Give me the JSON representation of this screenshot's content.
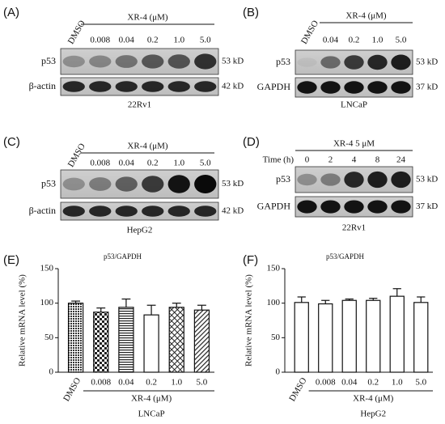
{
  "blots": [
    {
      "label": "(A)",
      "treatment": "XR-4 (μM)",
      "lanes": [
        "DMSO",
        "0.008",
        "0.04",
        "0.2",
        "1.0",
        "5.0"
      ],
      "rows": [
        {
          "name": "p53",
          "size": "53 kD"
        },
        {
          "name": "β-actin",
          "size": "42 kD"
        }
      ],
      "cell_line": "22Rv1"
    },
    {
      "label": "(B)",
      "treatment": "XR-4 (μM)",
      "lanes": [
        "DMSO",
        "0.04",
        "0.2",
        "1.0",
        "5.0"
      ],
      "rows": [
        {
          "name": "p53",
          "size": "53 kD"
        },
        {
          "name": "GAPDH",
          "size": "37 kD"
        }
      ],
      "cell_line": "LNCaP"
    },
    {
      "label": "(C)",
      "treatment": "XR-4 (μM)",
      "lanes": [
        "DMSO",
        "0.008",
        "0.04",
        "0.2",
        "1.0",
        "5.0"
      ],
      "rows": [
        {
          "name": "p53",
          "size": "53 kD"
        },
        {
          "name": "β-actin",
          "size": "42 kD"
        }
      ],
      "cell_line": "HepG2"
    },
    {
      "label": "(D)",
      "treatment": "XR-4 5 μM",
      "lane_title": "Time (h)",
      "lanes": [
        "0",
        "2",
        "4",
        "8",
        "24"
      ],
      "rows": [
        {
          "name": "p53",
          "size": "53 kD"
        },
        {
          "name": "GAPDH",
          "size": "37 kD"
        }
      ],
      "cell_line": "22Rv1"
    }
  ],
  "chart_data": [
    {
      "type": "bar",
      "label": "(E)",
      "title": "p53/GAPDH",
      "ylabel": "Relative mRNA level (%)",
      "xlabel": "XR-4 (μM)",
      "cell_line": "LNCaP",
      "categories": [
        "DMSO",
        "0.008",
        "0.04",
        "0.2",
        "1.0",
        "5.0"
      ],
      "values": [
        100,
        87,
        94,
        83,
        94,
        90
      ],
      "errors": [
        3,
        6,
        12,
        14,
        6,
        7
      ],
      "patterns": [
        "dots",
        "checker",
        "hlines",
        "none",
        "crosshatch",
        "diag"
      ],
      "ylim": [
        0,
        150
      ],
      "yticks": [
        0,
        50,
        100,
        150
      ]
    },
    {
      "type": "bar",
      "label": "(F)",
      "title": "p53/GAPDH",
      "ylabel": "Relative mRNA level (%)",
      "xlabel": "XR-4 (μM)",
      "cell_line": "HepG2",
      "categories": [
        "DMSO",
        "0.008",
        "0.04",
        "0.2",
        "1.0",
        "5.0"
      ],
      "values": [
        101,
        99,
        104,
        104,
        110,
        101
      ],
      "errors": [
        8,
        5,
        2,
        3,
        11,
        8
      ],
      "patterns": [
        "none",
        "none",
        "none",
        "none",
        "none",
        "none"
      ],
      "ylim": [
        0,
        150
      ],
      "yticks": [
        0,
        50,
        100,
        150
      ]
    }
  ]
}
